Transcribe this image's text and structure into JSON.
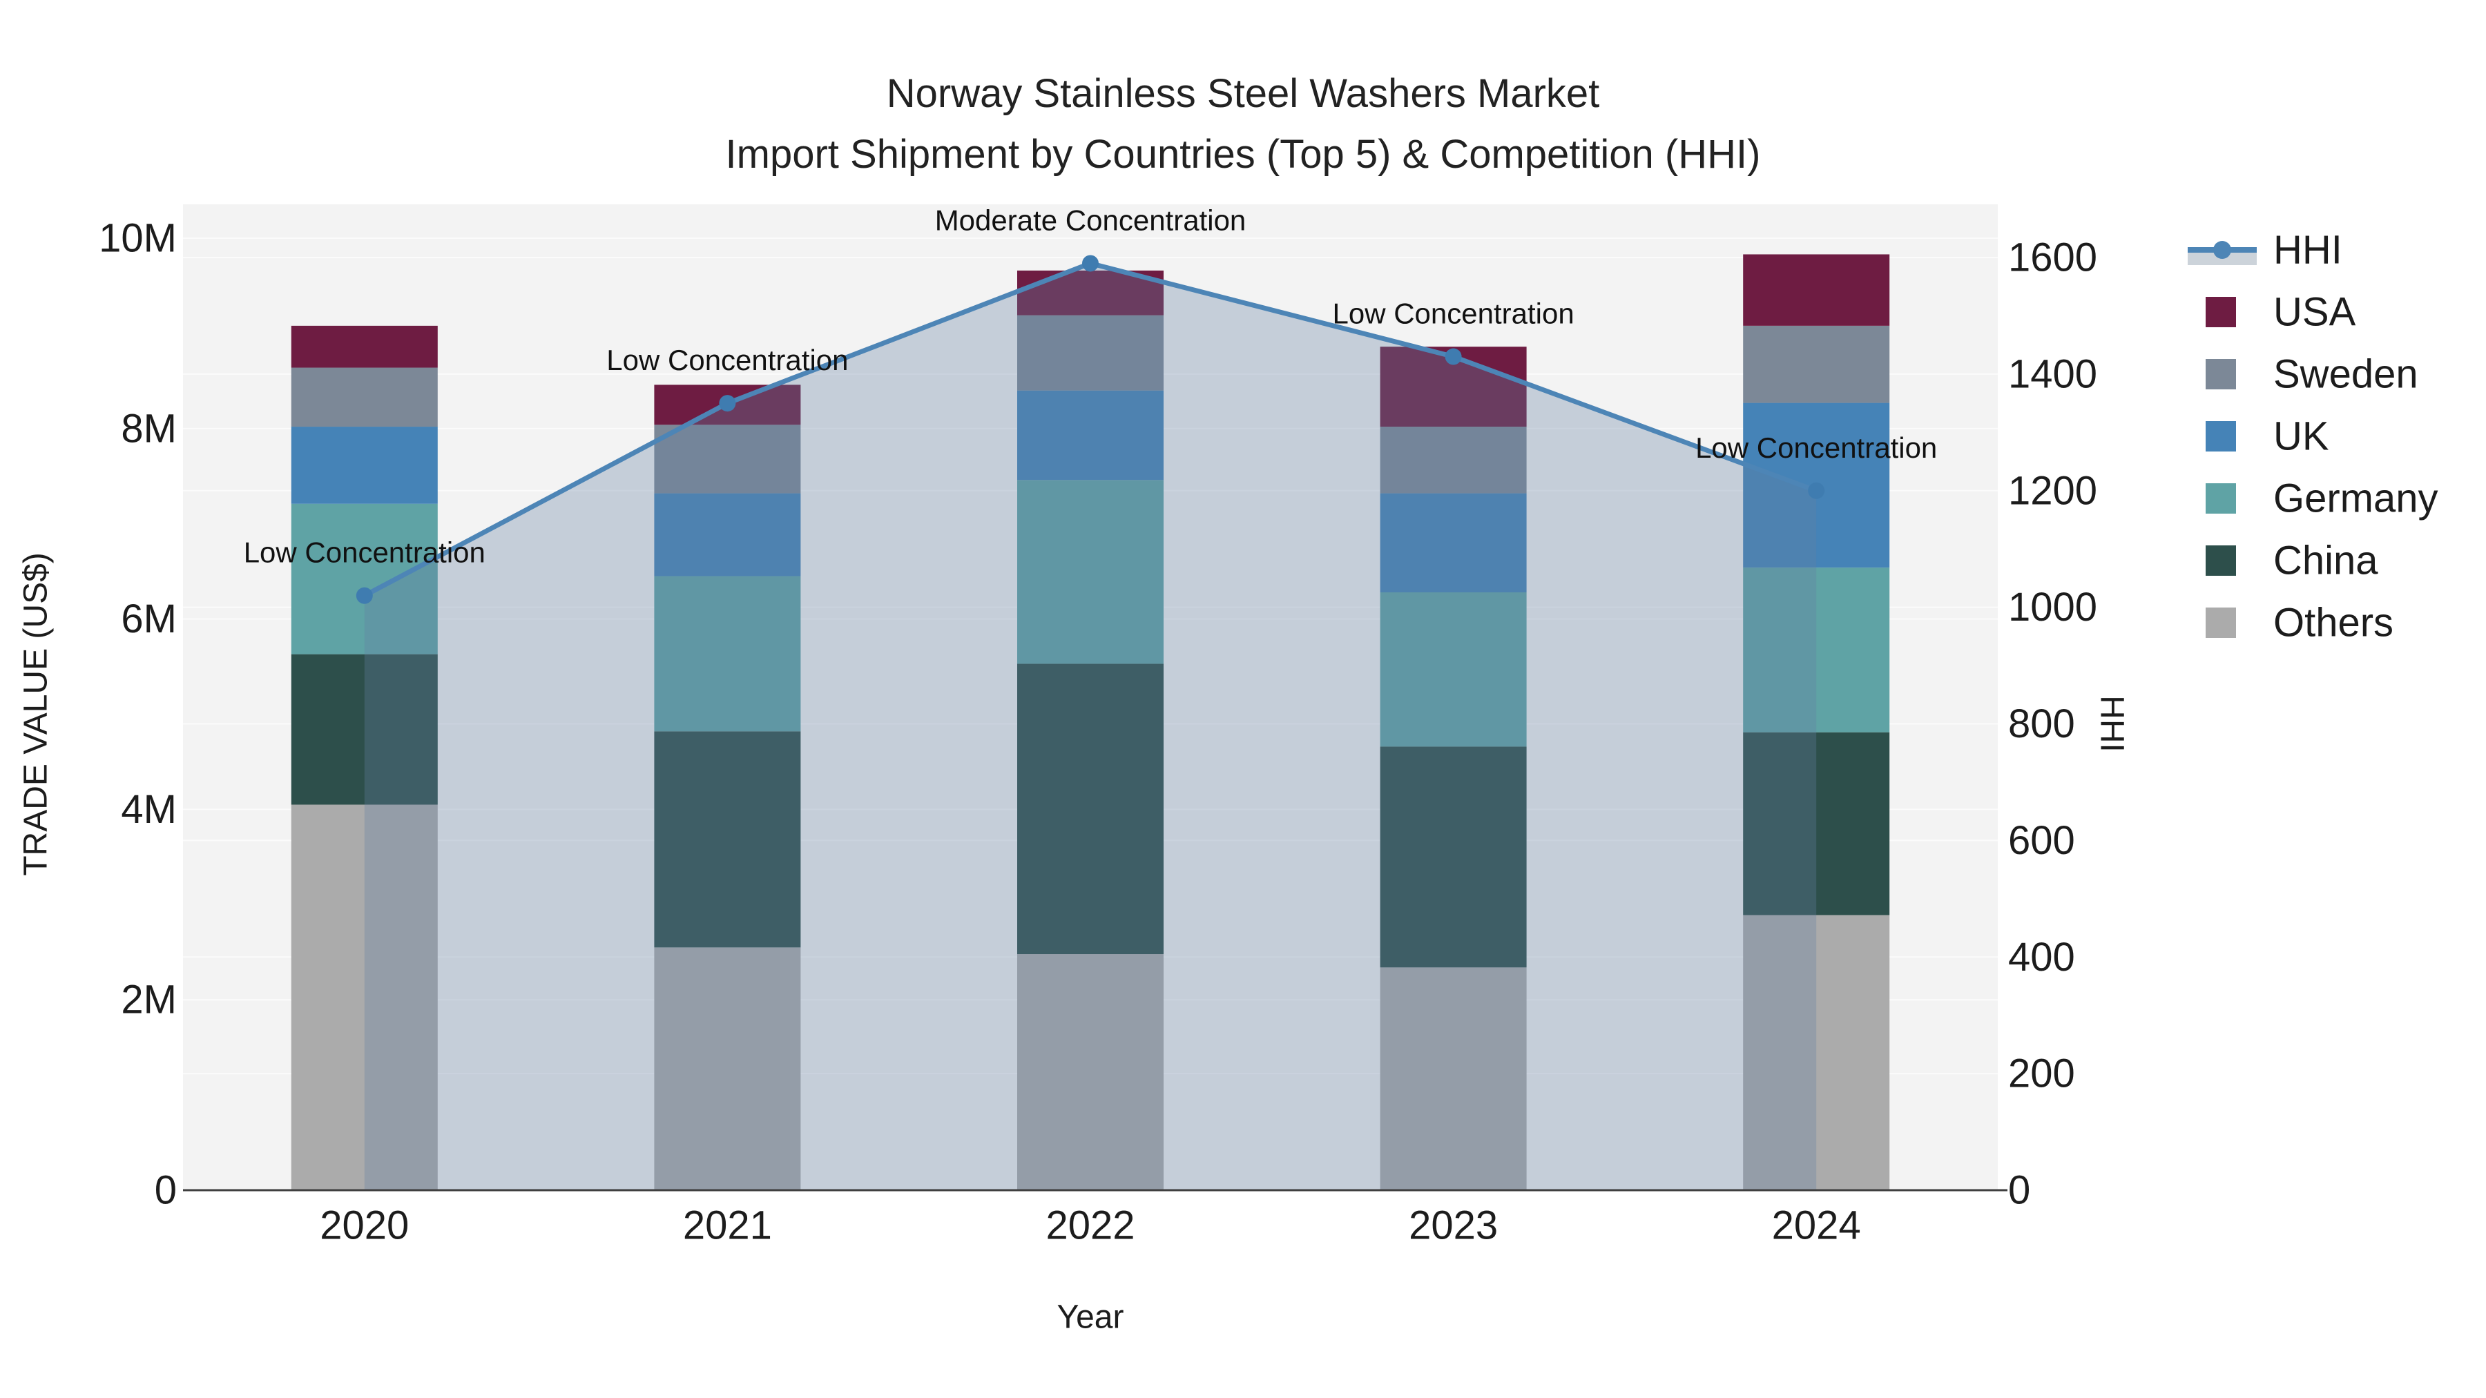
{
  "title": {
    "line1": "Norway Stainless Steel Washers Market",
    "line2": "Import Shipment by Countries (Top 5) & Competition (HHI)"
  },
  "chart_data": {
    "type": "combo-stacked-bar-line-area",
    "categories": [
      "2020",
      "2021",
      "2022",
      "2023",
      "2024"
    ],
    "x_label": "Year",
    "y_left": {
      "title": "TRADE VALUE (US$)",
      "min": 0,
      "max": 10000000,
      "tick_values": [
        0,
        2000000,
        4000000,
        6000000,
        8000000,
        10000000
      ],
      "tick_labels": [
        "0",
        "2M",
        "4M",
        "6M",
        "8M",
        "10M"
      ]
    },
    "y_right": {
      "title": "HHI",
      "min": 0,
      "max": 1600,
      "tick_values": [
        0,
        200,
        400,
        600,
        800,
        1000,
        1200,
        1400,
        1600
      ],
      "tick_labels": [
        "0",
        "200",
        "400",
        "600",
        "800",
        "1000",
        "1200",
        "1400",
        "1600"
      ]
    },
    "bar_series": [
      {
        "name": "Others",
        "color": "#ababab",
        "values": [
          4050000,
          2550000,
          2480000,
          2340000,
          2890000
        ]
      },
      {
        "name": "China",
        "color": "#2d4f4b",
        "values": [
          1580000,
          2270000,
          3050000,
          2320000,
          1920000
        ]
      },
      {
        "name": "Germany",
        "color": "#5fa3a5",
        "values": [
          1580000,
          1630000,
          1930000,
          1620000,
          1730000
        ]
      },
      {
        "name": "UK",
        "color": "#4583b7",
        "values": [
          810000,
          870000,
          940000,
          1040000,
          1730000
        ]
      },
      {
        "name": "Sweden",
        "color": "#7c8897",
        "values": [
          620000,
          720000,
          790000,
          700000,
          810000
        ]
      },
      {
        "name": "USA",
        "color": "#6e1c42",
        "values": [
          440000,
          420000,
          470000,
          840000,
          750000
        ]
      }
    ],
    "line_series": {
      "name": "HHI",
      "values": [
        1020,
        1350,
        1590,
        1430,
        1200
      ],
      "color": "#4d85b6",
      "marker_color": "#3f7cb0",
      "area_color": "rgba(101,126,162,0.32)"
    },
    "annotations": [
      {
        "category": "2020",
        "text": "Low Concentration"
      },
      {
        "category": "2021",
        "text": "Low Concentration"
      },
      {
        "category": "2022",
        "text": "Moderate Concentration"
      },
      {
        "category": "2023",
        "text": "Low Concentration"
      },
      {
        "category": "2024",
        "text": "Low Concentration"
      }
    ],
    "plot_bg": "#f3f3f3",
    "grid_color": "#fbfbfb",
    "axis_line_color": "#3f3f3f",
    "text_color": "#1c1c1c"
  },
  "legend": {
    "items": [
      {
        "name": "HHI",
        "type": "line-area",
        "line_color": "#4d85b6",
        "band_color": "#ccd3da"
      },
      {
        "name": "USA",
        "type": "square",
        "color": "#6e1c42"
      },
      {
        "name": "Sweden",
        "type": "square",
        "color": "#7c8897"
      },
      {
        "name": "UK",
        "type": "square",
        "color": "#4583b7"
      },
      {
        "name": "Germany",
        "type": "square",
        "color": "#5fa3a5"
      },
      {
        "name": "China",
        "type": "square",
        "color": "#2d4f4b"
      },
      {
        "name": "Others",
        "type": "square",
        "color": "#ababab"
      }
    ]
  }
}
